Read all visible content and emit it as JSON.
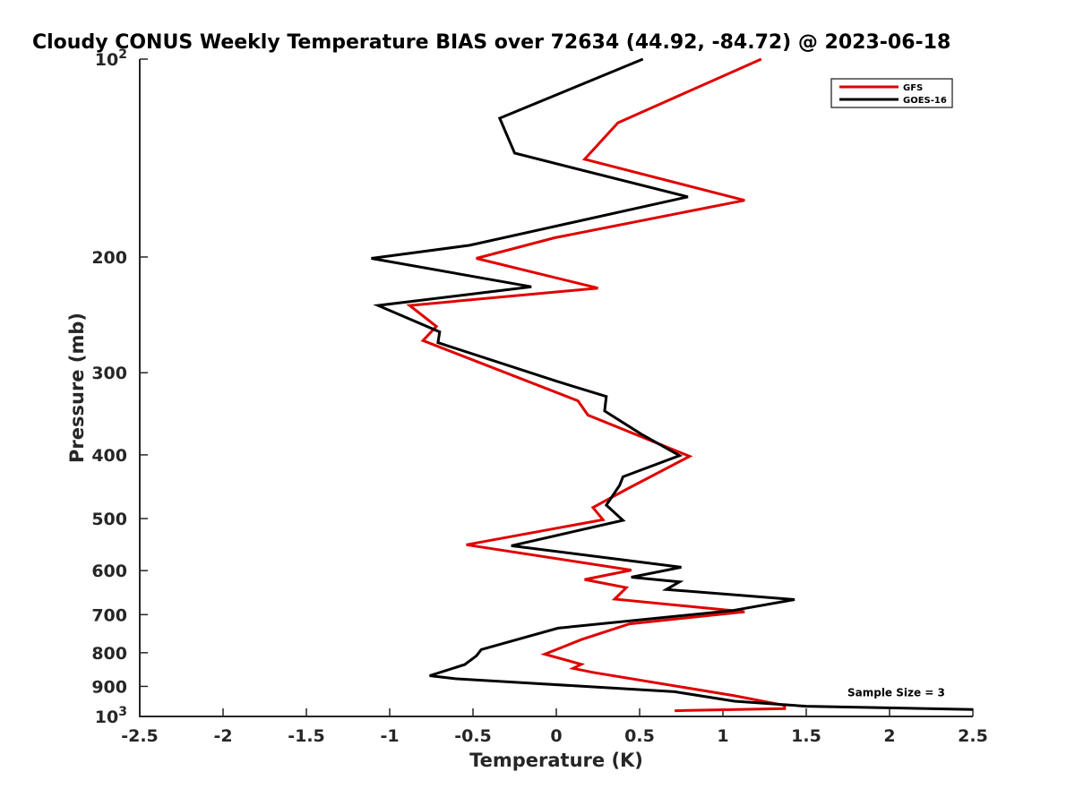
{
  "chart_data": {
    "type": "line",
    "title": "Cloudy CONUS Weekly Temperature BIAS over 72634 (44.92, -84.72) @ 2023-06-18",
    "xlabel": "Temperature (K)",
    "ylabel": "Pressure (mb)",
    "xlim": [
      -2.5,
      2.5
    ],
    "ylim": [
      100,
      1000
    ],
    "y_scale": "log",
    "y_reversed": true,
    "grid": false,
    "legend_position": "top-right",
    "x_ticks": [
      {
        "value": -2.5,
        "label": "-2.5"
      },
      {
        "value": -2,
        "label": "-2"
      },
      {
        "value": -1.5,
        "label": "-1.5"
      },
      {
        "value": -1,
        "label": "-1"
      },
      {
        "value": -0.5,
        "label": "-0.5"
      },
      {
        "value": 0,
        "label": "0"
      },
      {
        "value": 0.5,
        "label": "0.5"
      },
      {
        "value": 1,
        "label": "1"
      },
      {
        "value": 1.5,
        "label": "1.5"
      },
      {
        "value": 2,
        "label": "2"
      },
      {
        "value": 2.5,
        "label": "2.5"
      }
    ],
    "y_ticks": [
      {
        "value": 100,
        "label": "10",
        "exp": "2"
      },
      {
        "value": 200,
        "label": "200"
      },
      {
        "value": 300,
        "label": "300"
      },
      {
        "value": 400,
        "label": "400"
      },
      {
        "value": 500,
        "label": "500"
      },
      {
        "value": 600,
        "label": "600"
      },
      {
        "value": 700,
        "label": "700"
      },
      {
        "value": 800,
        "label": "800"
      },
      {
        "value": 900,
        "label": "900"
      },
      {
        "value": 1000,
        "label": "10",
        "exp": "3"
      }
    ],
    "series": [
      {
        "name": "GFS",
        "color": "#e00000",
        "points": [
          [
            1.23,
            100
          ],
          [
            0.37,
            125
          ],
          [
            0.17,
            142
          ],
          [
            1.13,
            164
          ],
          [
            -0.01,
            187
          ],
          [
            -0.48,
            201
          ],
          [
            0.25,
            223
          ],
          [
            -0.88,
            237
          ],
          [
            -0.72,
            255
          ],
          [
            -0.8,
            268
          ],
          [
            0.13,
            331
          ],
          [
            0.19,
            348
          ],
          [
            0.8,
            402
          ],
          [
            0.43,
            450
          ],
          [
            0.22,
            481
          ],
          [
            0.28,
            502
          ],
          [
            -0.54,
            548
          ],
          [
            0.45,
            599
          ],
          [
            0.17,
            619
          ],
          [
            0.42,
            637
          ],
          [
            0.35,
            663
          ],
          [
            1.13,
            693
          ],
          [
            0.44,
            723
          ],
          [
            0.15,
            764
          ],
          [
            -0.07,
            804
          ],
          [
            0.15,
            833
          ],
          [
            0.1,
            845
          ],
          [
            0.22,
            857
          ],
          [
            1.07,
            930
          ],
          [
            1.37,
            962
          ],
          [
            1.37,
            973
          ],
          [
            0.71,
            980
          ]
        ]
      },
      {
        "name": "GOES-16",
        "color": "#000000",
        "points": [
          [
            0.52,
            100
          ],
          [
            -0.34,
            123
          ],
          [
            -0.25,
            139
          ],
          [
            0.79,
            162
          ],
          [
            -0.52,
            192
          ],
          [
            -1.11,
            201
          ],
          [
            -0.15,
            222
          ],
          [
            -1.07,
            237
          ],
          [
            -0.7,
            260
          ],
          [
            -0.71,
            270
          ],
          [
            0.0,
            309
          ],
          [
            0.3,
            326
          ],
          [
            0.29,
            343
          ],
          [
            0.51,
            372
          ],
          [
            0.74,
            401
          ],
          [
            0.4,
            432
          ],
          [
            0.38,
            445
          ],
          [
            0.3,
            477
          ],
          [
            0.4,
            503
          ],
          [
            -0.27,
            550
          ],
          [
            0.75,
            593
          ],
          [
            0.45,
            614
          ],
          [
            0.74,
            624
          ],
          [
            0.66,
            641
          ],
          [
            1.43,
            664
          ],
          [
            1.06,
            690
          ],
          [
            0.01,
            734
          ],
          [
            -0.27,
            768
          ],
          [
            -0.45,
            791
          ],
          [
            -0.48,
            809
          ],
          [
            -0.55,
            834
          ],
          [
            -0.76,
            867
          ],
          [
            -0.61,
            876
          ],
          [
            0.71,
            917
          ],
          [
            1.07,
            948
          ],
          [
            1.5,
            965
          ],
          [
            2.5,
            976
          ]
        ]
      }
    ],
    "annotations": [
      {
        "text": "Sample Size = 3",
        "x": 2.04,
        "y": 920
      }
    ]
  }
}
